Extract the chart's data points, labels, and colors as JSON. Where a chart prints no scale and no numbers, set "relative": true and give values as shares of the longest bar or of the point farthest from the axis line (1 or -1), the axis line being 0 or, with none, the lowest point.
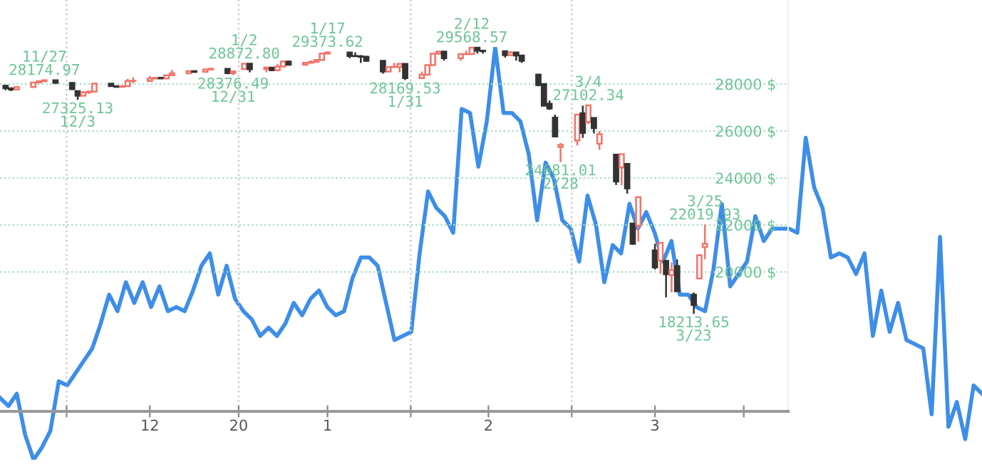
{
  "chart_data": [
    {
      "type": "candlestick",
      "x": [
        "2019-11-20",
        "2019-11-21",
        "2019-11-22",
        "2019-11-25",
        "2019-11-26",
        "2019-11-27",
        "2019-11-29",
        "2019-12-02",
        "2019-12-03",
        "2019-12-04",
        "2019-12-05",
        "2019-12-06",
        "2019-12-09",
        "2019-12-10",
        "2019-12-11",
        "2019-12-12",
        "2019-12-13",
        "2019-12-16",
        "2019-12-17",
        "2019-12-18",
        "2019-12-19",
        "2019-12-20",
        "2019-12-23",
        "2019-12-24",
        "2019-12-26",
        "2019-12-27",
        "2019-12-30",
        "2019-12-31",
        "2020-01-02",
        "2020-01-03",
        "2020-01-06",
        "2020-01-07",
        "2020-01-08",
        "2020-01-09",
        "2020-01-10",
        "2020-01-13",
        "2020-01-14",
        "2020-01-15",
        "2020-01-16",
        "2020-01-17",
        "2020-01-21",
        "2020-01-22",
        "2020-01-23",
        "2020-01-24",
        "2020-01-27",
        "2020-01-28",
        "2020-01-29",
        "2020-01-30",
        "2020-01-31",
        "2020-02-03",
        "2020-02-04",
        "2020-02-05",
        "2020-02-06",
        "2020-02-07",
        "2020-02-10",
        "2020-02-11",
        "2020-02-12",
        "2020-02-13",
        "2020-02-14",
        "2020-02-18",
        "2020-02-19",
        "2020-02-20",
        "2020-02-21",
        "2020-02-24",
        "2020-02-25",
        "2020-02-26",
        "2020-02-27",
        "2020-02-28",
        "2020-03-02",
        "2020-03-03",
        "2020-03-04",
        "2020-03-05",
        "2020-03-06",
        "2020-03-09",
        "2020-03-10",
        "2020-03-11",
        "2020-03-12",
        "2020-03-13",
        "2020-03-16",
        "2020-03-17",
        "2020-03-18",
        "2020-03-19",
        "2020-03-20",
        "2020-03-23",
        "2020-03-24",
        "2020-03-25"
      ],
      "ohlc": [
        [
          27930,
          27970,
          27740,
          27821
        ],
        [
          27821,
          27850,
          27700,
          27766
        ],
        [
          27766,
          27900,
          27750,
          27876
        ],
        [
          27876,
          28080,
          27870,
          28066
        ],
        [
          28066,
          28140,
          28040,
          28121
        ],
        [
          28121,
          28174.97,
          28100,
          28164
        ],
        [
          28164,
          28170,
          28030,
          28051
        ],
        [
          28051,
          28070,
          27750,
          27783
        ],
        [
          27700,
          27720,
          27325.13,
          27502
        ],
        [
          27502,
          27700,
          27500,
          27649
        ],
        [
          27649,
          27720,
          27580,
          27677
        ],
        [
          27677,
          28050,
          27670,
          28015
        ],
        [
          28015,
          28030,
          27890,
          27909
        ],
        [
          27909,
          27940,
          27850,
          27881
        ],
        [
          27881,
          27940,
          27860,
          27911
        ],
        [
          27911,
          28220,
          27900,
          28132
        ],
        [
          28132,
          28290,
          28030,
          28135
        ],
        [
          28135,
          28340,
          28130,
          28235
        ],
        [
          28235,
          28290,
          28220,
          28267
        ],
        [
          28267,
          28300,
          28230,
          28239
        ],
        [
          28239,
          28380,
          28230,
          28377
        ],
        [
          28377,
          28600,
          28370,
          28455
        ],
        [
          28455,
          28580,
          28450,
          28551
        ],
        [
          28551,
          28580,
          28500,
          28515
        ],
        [
          28515,
          28630,
          28510,
          28621
        ],
        [
          28621,
          28700,
          28600,
          28645
        ],
        [
          28645,
          28650,
          28420,
          28462
        ],
        [
          28462,
          28560,
          28376.49,
          28538
        ],
        [
          28638,
          28872.8,
          28630,
          28868
        ],
        [
          28868,
          28870,
          28500,
          28634
        ],
        [
          28634,
          28710,
          28500,
          28703
        ],
        [
          28703,
          28710,
          28560,
          28583
        ],
        [
          28583,
          28860,
          28570,
          28745
        ],
        [
          28745,
          29000,
          28740,
          28957
        ],
        [
          28957,
          29000,
          28800,
          28823
        ],
        [
          28823,
          28910,
          28800,
          28907
        ],
        [
          28907,
          29010,
          28880,
          28940
        ],
        [
          28940,
          29060,
          28930,
          29030
        ],
        [
          29030,
          29300,
          29020,
          29297
        ],
        [
          29297,
          29373.62,
          29290,
          29348
        ],
        [
          29348,
          29350,
          29100,
          29196
        ],
        [
          29196,
          29350,
          29180,
          29186
        ],
        [
          29186,
          29230,
          28900,
          29160
        ],
        [
          29160,
          29200,
          28950,
          28990
        ],
        [
          28990,
          28990,
          28440,
          28535
        ],
        [
          28535,
          28760,
          28520,
          28723
        ],
        [
          28723,
          28900,
          28700,
          28734
        ],
        [
          28734,
          28870,
          28500,
          28859
        ],
        [
          28859,
          28860,
          28169.53,
          28256
        ],
        [
          28256,
          28530,
          28250,
          28399
        ],
        [
          28399,
          28840,
          28390,
          28807
        ],
        [
          28807,
          29300,
          28800,
          29290
        ],
        [
          29290,
          29410,
          29250,
          29379
        ],
        [
          29379,
          29390,
          29000,
          29103
        ],
        [
          29103,
          29280,
          29000,
          29276
        ],
        [
          29276,
          29420,
          29240,
          29276
        ],
        [
          29276,
          29568.57,
          29270,
          29551
        ],
        [
          29551,
          29560,
          29300,
          29423
        ],
        [
          29423,
          29450,
          29300,
          29398
        ],
        [
          29398,
          29400,
          29130,
          29232
        ],
        [
          29232,
          29400,
          29220,
          29348
        ],
        [
          29348,
          29370,
          29000,
          29219
        ],
        [
          29219,
          29230,
          28900,
          28992
        ],
        [
          28402,
          28402,
          27900,
          27961
        ],
        [
          28003,
          28003,
          27050,
          27081
        ],
        [
          27165,
          27300,
          26900,
          26957
        ],
        [
          26571,
          26700,
          25760,
          25766
        ],
        [
          25317,
          25494,
          24681.01,
          25409
        ],
        [
          25591,
          26706,
          25391,
          26703
        ],
        [
          26762,
          27084,
          25706,
          25917
        ],
        [
          26383,
          27102.34,
          26286,
          27091
        ],
        [
          26553,
          26553,
          25900,
          26121
        ],
        [
          25457,
          26000,
          25200,
          25865
        ],
        [
          24992,
          24992,
          23700,
          23851
        ],
        [
          24453,
          25020,
          23690,
          25018
        ],
        [
          24604,
          24604,
          23330,
          23553
        ],
        [
          22064,
          22064,
          21150,
          21200
        ],
        [
          21974,
          23190,
          21290,
          23185
        ],
        [
          20918,
          21200,
          20100,
          20189
        ],
        [
          20478,
          21270,
          19920,
          21237
        ],
        [
          20468,
          20500,
          18920,
          19899
        ],
        [
          19867,
          20400,
          19130,
          20087
        ],
        [
          20254,
          20530,
          19150,
          19174
        ],
        [
          19028,
          19120,
          18213.65,
          18592
        ],
        [
          19722,
          20760,
          19720,
          20705
        ],
        [
          21051,
          22019.93,
          20538,
          21200
        ]
      ],
      "xlim": [
        "2019-11-19",
        "2020-04-09"
      ],
      "xticks": [
        {
          "value": "2019-12-01",
          "label": null
        },
        {
          "value": "2019-12-16",
          "label": "12"
        },
        {
          "value": "2020-01-01",
          "label": "20"
        },
        {
          "value": "2020-01-17",
          "label": "1"
        },
        {
          "value": "2020-02-01",
          "label": null
        },
        {
          "value": "2020-02-15",
          "label": "2"
        },
        {
          "value": "2020-03-01",
          "label": null
        },
        {
          "value": "2020-03-16",
          "label": "3"
        },
        {
          "value": "2020-04-01",
          "label": null
        }
      ],
      "ylim": [
        14060,
        31580
      ],
      "yticks": [
        {
          "value": 20000,
          "label": "20000 $"
        },
        {
          "value": 22000,
          "label": "22000 $"
        },
        {
          "value": 24000,
          "label": "24000 $"
        },
        {
          "value": 26000,
          "label": "26000 $"
        },
        {
          "value": 28000,
          "label": "28000 $"
        }
      ],
      "grid": "y",
      "ref_lines": [
        {
          "axis": "x",
          "value": "2019-12-01",
          "color": "#cccccc",
          "line_style": "dotted"
        },
        {
          "axis": "x",
          "value": "2020-01-01",
          "color": "#cccccc",
          "line_style": "dotted"
        },
        {
          "axis": "x",
          "value": "2020-02-01",
          "color": "#cccccc",
          "line_style": "dotted"
        },
        {
          "axis": "x",
          "value": "2020-03-01",
          "color": "#cccccc",
          "line_style": "dotted"
        }
      ],
      "annotations": [
        {
          "text": "11/27\n28174.97",
          "x": "2019-11-27",
          "y": 28174.97
        },
        {
          "text": "27325.13\n12/3",
          "x": "2019-12-03",
          "y": 27325.13
        },
        {
          "text": "28376.49\n12/31",
          "x": "2019-12-31",
          "y": 28376.49
        },
        {
          "text": "1/2\n28872.80",
          "x": "2020-01-02",
          "y": 28872.8
        },
        {
          "text": "1/17\n29373.62",
          "x": "2020-01-17",
          "y": 29373.62
        },
        {
          "text": "28169.53\n1/31",
          "x": "2020-01-31",
          "y": 28169.53
        },
        {
          "text": "2/12\n29568.57",
          "x": "2020-02-12",
          "y": 29568.57
        },
        {
          "text": "24681.01\n2/28",
          "x": "2020-02-28",
          "y": 24681.01
        },
        {
          "text": "3/4\n27102.34",
          "x": "2020-03-04",
          "y": 27102.34
        },
        {
          "text": "18213.65\n3/23",
          "x": "2020-03-23",
          "y": 18213.65
        },
        {
          "text": "3/25\n22019.93",
          "x": "2020-03-25",
          "y": 22019.93
        }
      ]
    },
    {
      "type": "line",
      "relative": true,
      "categories": [
        null,
        null,
        null,
        null,
        null,
        null,
        null,
        null,
        null,
        null,
        null,
        null,
        null,
        null,
        null,
        null,
        null,
        null,
        null,
        null,
        null,
        null,
        null,
        null,
        null,
        null,
        null,
        null,
        null,
        null,
        null,
        null,
        null,
        null,
        null,
        null,
        null,
        null,
        null,
        null,
        null,
        null,
        null,
        null,
        null,
        null,
        null,
        null,
        null,
        null,
        null,
        null,
        null,
        null,
        null,
        null,
        null,
        null,
        null,
        null,
        null,
        null,
        null,
        null,
        null,
        null,
        null,
        null,
        null,
        null,
        null,
        null,
        null,
        null,
        null,
        null,
        null,
        null,
        null,
        null,
        null,
        null,
        null,
        null,
        null,
        null,
        null,
        null,
        null,
        null,
        null,
        null,
        null,
        null,
        null,
        null,
        null,
        null,
        null,
        null,
        null,
        null,
        null,
        null,
        null,
        null,
        null,
        null,
        null,
        null,
        null,
        null,
        null,
        null,
        null,
        null,
        null,
        null
      ],
      "series": [
        {
          "color": "#3d8ee8",
          "values": [
            0.15,
            0.13,
            0.16,
            0.06,
            0,
            0.03,
            0.07,
            0.19,
            0.18,
            0.21,
            0.24,
            0.27,
            0.33,
            0.4,
            0.36,
            0.43,
            0.38,
            0.43,
            0.37,
            0.42,
            0.36,
            0.37,
            0.36,
            0.41,
            0.47,
            0.5,
            0.4,
            0.47,
            0.39,
            0.36,
            0.34,
            0.3,
            0.32,
            0.3,
            0.33,
            0.38,
            0.35,
            0.39,
            0.41,
            0.37,
            0.35,
            0.36,
            0.44,
            0.49,
            0.49,
            0.47,
            0.38,
            0.29,
            0.3,
            0.31,
            0.5,
            0.65,
            0.61,
            0.59,
            0.55,
            0.85,
            0.84,
            0.71,
            0.82,
            1,
            0.84,
            0.84,
            0.82,
            0.74,
            0.58,
            0.72,
            0.68,
            0.58,
            0.56,
            0.48,
            0.64,
            0.57,
            0.43,
            0.52,
            0.5,
            0.62,
            0.56,
            0.6,
            0.55,
            0.48,
            0.53,
            0.4,
            0.4,
            0.37,
            0.36,
            0.46,
            0.62,
            0.42,
            0.45,
            0.48,
            0.59,
            0.53,
            0.56,
            0.56,
            0.56,
            0.55,
            0.78,
            0.66,
            0.61,
            0.49,
            0.5,
            0.49,
            0.45,
            0.5,
            0.3,
            0.41,
            0.31,
            0.38,
            0.29,
            0.28,
            0.27,
            0.11,
            0.54,
            0.08,
            0.14,
            0.05,
            0.18,
            0.16
          ]
        }
      ]
    }
  ]
}
